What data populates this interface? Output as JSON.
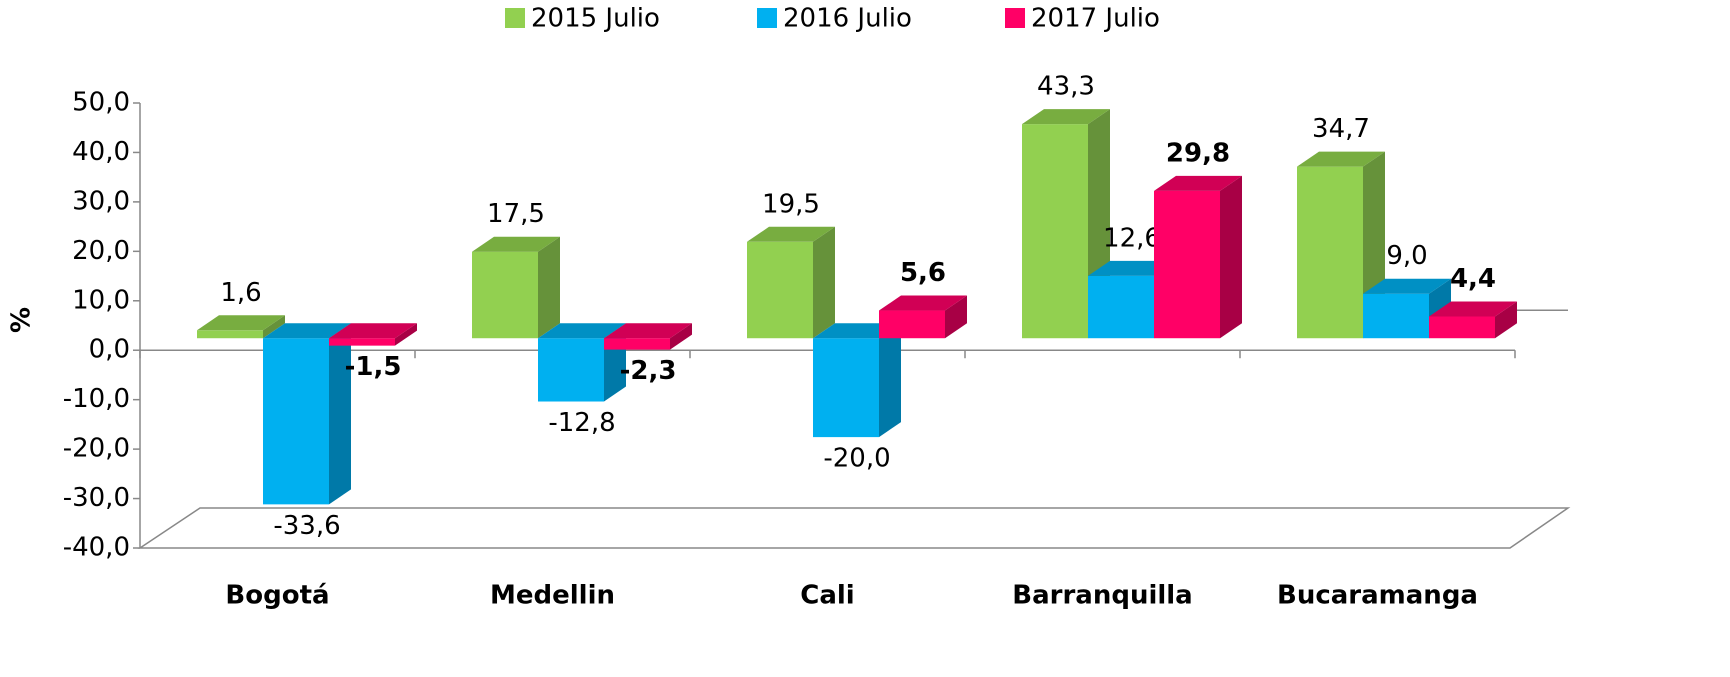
{
  "chart_data": {
    "type": "bar3d",
    "y_label": "%",
    "categories": [
      "Bogotá",
      "Medellin",
      "Cali",
      "Barranquilla",
      "Bucaramanga"
    ],
    "series": [
      {
        "name": "2015 Julio",
        "color": "#92d050",
        "side": "#66923a",
        "top": "#78ad40",
        "bold": false,
        "values": [
          1.6,
          17.5,
          19.5,
          43.3,
          34.7
        ],
        "value_labels": [
          "1,6",
          "17,5",
          "19,5",
          "43,3",
          "34,7"
        ]
      },
      {
        "name": "2016 Julio",
        "color": "#00b0f0",
        "side": "#0079a8",
        "top": "#0090c4",
        "bold": false,
        "values": [
          -33.6,
          -12.8,
          -20.0,
          12.6,
          9.0
        ],
        "value_labels": [
          "-33,6",
          "-12,8",
          "-20,0",
          "12,6",
          "9,0"
        ]
      },
      {
        "name": "2017 Julio",
        "color": "#ff0066",
        "side": "#a80045",
        "top": "#d10055",
        "bold": true,
        "values": [
          -1.5,
          -2.3,
          5.6,
          29.8,
          4.4
        ],
        "value_labels": [
          "-1,5",
          "-2,3",
          "5,6",
          "29,8",
          "4,4"
        ]
      }
    ],
    "ylim": [
      -40,
      50
    ],
    "yticks": [
      {
        "value": 50,
        "label": "50,0"
      },
      {
        "value": 40,
        "label": "40,0"
      },
      {
        "value": 30,
        "label": "30,0"
      },
      {
        "value": 20,
        "label": "20,0"
      },
      {
        "value": 10,
        "label": "10,0"
      },
      {
        "value": 0,
        "label": "0,0"
      },
      {
        "value": -10,
        "label": "-10,0"
      },
      {
        "value": -20,
        "label": "-20,0"
      },
      {
        "value": -30,
        "label": "-30,0"
      },
      {
        "value": -40,
        "label": "-40,0"
      }
    ]
  }
}
